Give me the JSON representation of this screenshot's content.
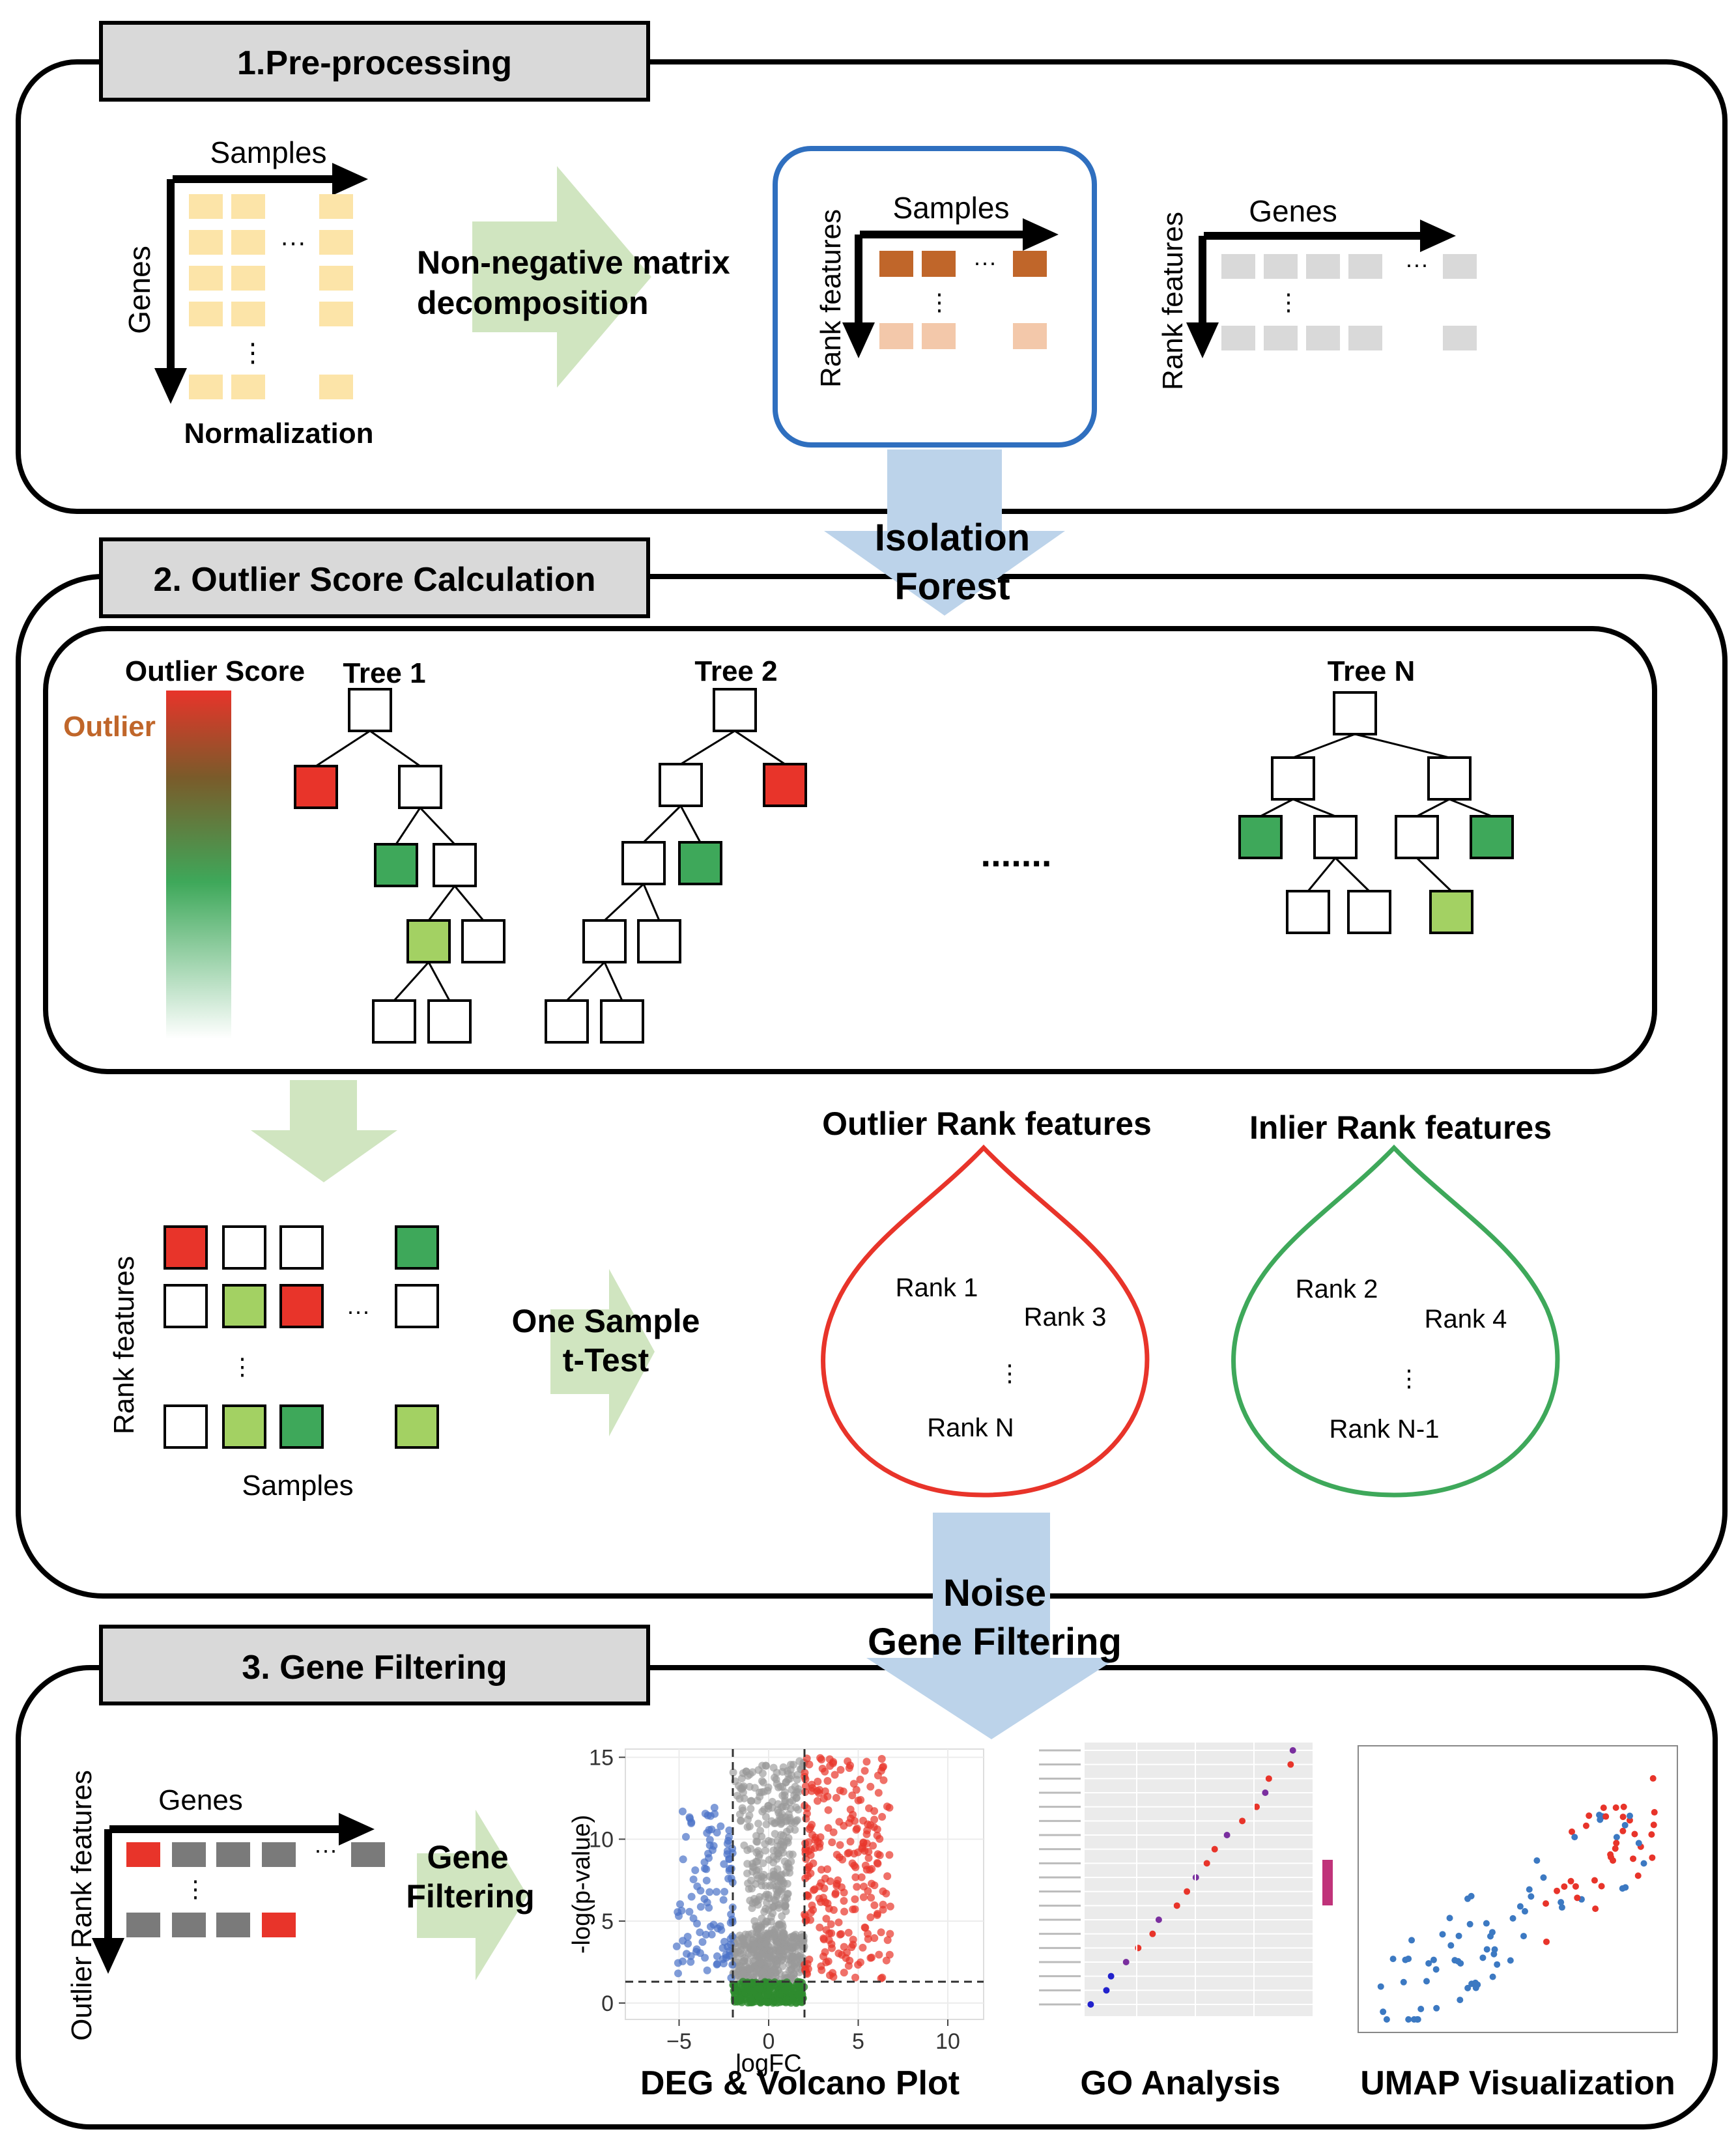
{
  "sections": {
    "preprocessing": {
      "title": "1.Pre-processing"
    },
    "outlier": {
      "title": "2. Outlier Score Calculation"
    },
    "filtering": {
      "title": "3. Gene Filtering"
    }
  },
  "preprocessing": {
    "matrix_x": "Samples",
    "matrix_y": "Genes",
    "matrix_caption": "Normalization",
    "nmf_line1": "Non-negative matrix",
    "nmf_line2": "decomposition",
    "w_x": "Samples",
    "w_y": "Rank features",
    "h_x": "Genes",
    "h_y": "Rank features",
    "ellipsis_h": "···",
    "ellipsis_v": "⋮"
  },
  "connectors": {
    "iso_line1": "Isolation",
    "iso_line2": "Forest",
    "noise_line1": "Noise",
    "noise_line2": "Gene Filtering"
  },
  "outlier_section": {
    "score_label": "Outlier Score",
    "outlier_label": "Outlier",
    "tree1": "Tree 1",
    "tree2": "Tree 2",
    "treeN": "Tree  N",
    "trees_ellipsis": ".......",
    "mat_y": "Rank features",
    "mat_x": "Samples",
    "ttest_line1": "One Sample",
    "ttest_line2": "t-Test",
    "outlier_title": "Outlier Rank features",
    "inlier_title": "Inlier Rank features",
    "outlier_items": [
      "Rank 1",
      "Rank 3",
      "Rank N"
    ],
    "inlier_items": [
      "Rank 2",
      "Rank 4",
      "Rank N-1"
    ]
  },
  "filtering_section": {
    "mat_y": "Outlier Rank features",
    "mat_x": "Genes",
    "gf_line1": "Gene",
    "gf_line2": "Filtering",
    "volcano_caption": "DEG & Volcano Plot",
    "go_caption": "GO Analysis",
    "umap_caption": "UMAP Visualization"
  },
  "colors": {
    "red": "#e8342a",
    "green_dark": "#3ea85a",
    "green_light": "#a3d163",
    "yellow": "#fce4a8",
    "brown": "#c0662a",
    "peach": "#f3c8aa",
    "grey_cell": "#d9d9d9",
    "grey_dark": "#7a7a7a",
    "arrow_green": "#d0e5c0",
    "arrow_blue": "#bcd3ea",
    "box_blue": "#2f6fbf",
    "label_bg": "#d9d9d9",
    "outlier_text": "#c0662a"
  },
  "chart_data": [
    {
      "type": "scatter",
      "xlabel": "logFC",
      "ylabel": "-log(p-value)",
      "xticks": [
        -5,
        0,
        5,
        10
      ],
      "yticks": [
        0,
        5,
        10,
        15
      ],
      "xlim": [
        -8,
        12
      ],
      "ylim": [
        -1,
        15.5
      ],
      "vlines": [
        -2,
        2
      ],
      "hline": 1.3,
      "series": [
        {
          "color": "#4a72c8",
          "x_range": [
            -5,
            -2
          ],
          "y_range": [
            1.5,
            12
          ]
        },
        {
          "color": "#999999",
          "x_range": [
            -2,
            2
          ],
          "y_range": [
            1.3,
            15
          ]
        },
        {
          "color": "#e8342a",
          "x_range": [
            2,
            7
          ],
          "y_range": [
            1.5,
            15
          ]
        },
        {
          "color": "#2e8b2e",
          "x_range": [
            -2,
            2
          ],
          "y_range": [
            0,
            1.3
          ]
        }
      ]
    },
    {
      "type": "scatter",
      "description_free": true,
      "points": 19
    },
    {
      "type": "scatter",
      "points": 100
    }
  ]
}
